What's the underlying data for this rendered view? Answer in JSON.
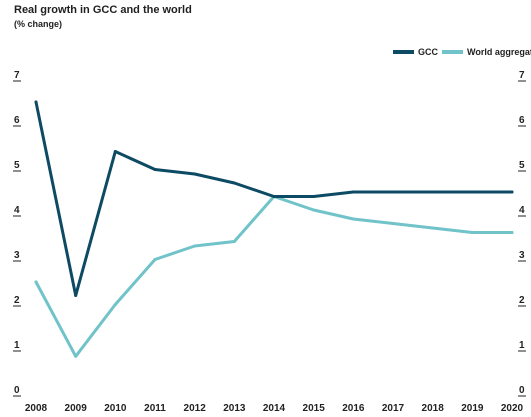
{
  "chart_data": {
    "type": "line",
    "title": "Real growth in GCC and the world",
    "subtitle": "(% change)",
    "xlabel": "",
    "ylabel": "",
    "x": [
      "2008",
      "2009",
      "2010",
      "2011",
      "2012",
      "2013",
      "2014",
      "2015",
      "2016",
      "2017",
      "2018",
      "2019",
      "2020"
    ],
    "ylim": [
      0,
      7
    ],
    "yticks": [
      "0",
      "1",
      "2",
      "3",
      "4",
      "5",
      "6",
      "7"
    ],
    "grid": false,
    "legend_position": "top-right",
    "series": [
      {
        "name": "GCC",
        "color": "#0d4a63",
        "values": [
          6.4,
          2.1,
          5.3,
          4.9,
          4.8,
          4.6,
          4.3,
          4.3,
          4.4,
          4.4,
          4.4,
          4.4,
          4.4
        ]
      },
      {
        "name": "World aggregate",
        "color": "#6fc3c9",
        "values": [
          2.4,
          0.75,
          1.9,
          2.9,
          3.2,
          3.3,
          4.3,
          4.0,
          3.8,
          3.7,
          3.6,
          3.5,
          3.5
        ]
      }
    ]
  }
}
